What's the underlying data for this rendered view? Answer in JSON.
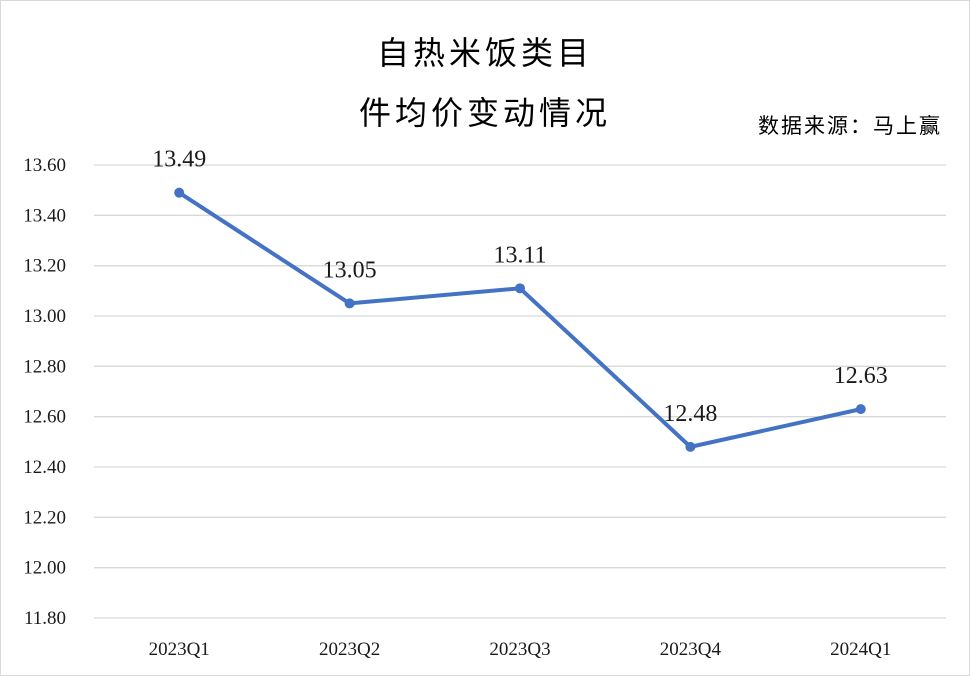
{
  "title_lines": [
    "自热米饭类目",
    "件均价变动情况"
  ],
  "source_note": "数据来源：马上赢",
  "colors": {
    "line": "#4472c4",
    "grid": "#d9d9d9"
  },
  "chart_data": {
    "type": "line",
    "title": "自热米饭类目件均价变动情况",
    "categories": [
      "2023Q1",
      "2023Q2",
      "2023Q3",
      "2023Q4",
      "2024Q1"
    ],
    "series": [
      {
        "values": [
          13.49,
          13.05,
          13.11,
          12.48,
          12.63
        ]
      }
    ],
    "data_labels": [
      "13.49",
      "13.05",
      "13.11",
      "12.48",
      "12.63"
    ],
    "y_ticks": [
      "11.80",
      "12.00",
      "12.20",
      "12.40",
      "12.60",
      "12.80",
      "13.00",
      "13.20",
      "13.40",
      "13.60"
    ],
    "ylim": [
      11.8,
      13.6
    ],
    "grid": true,
    "legend": "none",
    "xlabel": "",
    "ylabel": ""
  }
}
